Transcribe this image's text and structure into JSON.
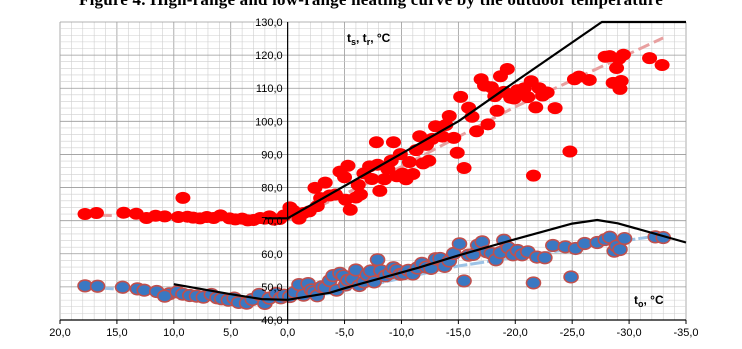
{
  "caption_fragment": "Figure 4. High-range and low-range heating curve by the outdoor temperature",
  "chart_data": {
    "type": "scatter",
    "ylabel": {
      "main": "t",
      "parts": [
        [
          "s",
          true
        ],
        [
          ", t",
          false
        ],
        [
          "r",
          true
        ],
        [
          ", °C",
          false
        ]
      ]
    },
    "xlabel": {
      "main": "t",
      "parts": [
        [
          "o",
          true
        ],
        [
          ", °C",
          false
        ]
      ]
    },
    "xlim": [
      20,
      -35
    ],
    "ylim": [
      40,
      130
    ],
    "x_ticks": [
      "20,0",
      "15,0",
      "10,0",
      "5,0",
      "0,0",
      "-5,0",
      "-10,0",
      "-15,0",
      "-20,0",
      "-25,0",
      "-30,0",
      "-35,0"
    ],
    "x_tick_values": [
      20,
      15,
      10,
      5,
      0,
      -5,
      -10,
      -15,
      -20,
      -25,
      -30,
      -35
    ],
    "y_ticks": [
      "40,0",
      "50,0",
      "60,0",
      "70,0",
      "80,0",
      "90,0",
      "100,0",
      "110,0",
      "120,0",
      "130,0"
    ],
    "y_tick_values": [
      40,
      50,
      60,
      70,
      80,
      90,
      100,
      110,
      120,
      130
    ],
    "grid": true,
    "colors": {
      "supply_points": "#ff0000",
      "return_points": "#3a78c2",
      "return_edge": "#c0504d",
      "curve": "#000000",
      "supply_trend": "#e8a0a0",
      "return_trend": "#9dc3e6"
    },
    "series": [
      {
        "kind": "points",
        "style": "supply",
        "points": [
          [
            17.8,
            72
          ],
          [
            16.8,
            72.3
          ],
          [
            14.4,
            72.4
          ],
          [
            13.3,
            72.1
          ],
          [
            12.4,
            70.8
          ],
          [
            11.6,
            71.5
          ],
          [
            10.8,
            71.3
          ],
          [
            9.6,
            71.1
          ],
          [
            9.2,
            76.9
          ],
          [
            8.8,
            71.2
          ],
          [
            8.3,
            70.9
          ],
          [
            7.7,
            70.7
          ],
          [
            7.1,
            71.1
          ],
          [
            6.5,
            70.8
          ],
          [
            5.9,
            71.6
          ],
          [
            5.1,
            70.7
          ],
          [
            4.6,
            70.4
          ],
          [
            4.0,
            70.6
          ],
          [
            3.5,
            70.1
          ],
          [
            3.0,
            70.2
          ],
          [
            2.4,
            70.8
          ],
          [
            2.0,
            70.6
          ],
          [
            1.6,
            71.3
          ],
          [
            1.2,
            70.3
          ],
          [
            0.7,
            70.5
          ],
          [
            0.3,
            71.6
          ],
          [
            -0.2,
            74.0
          ],
          [
            -0.5,
            73.0
          ],
          [
            -1.0,
            70.6
          ],
          [
            -1.4,
            72.3
          ],
          [
            -1.9,
            72.8
          ],
          [
            -2.4,
            79.9
          ],
          [
            -2.6,
            74.4
          ],
          [
            -2.9,
            76.8
          ],
          [
            -3.3,
            81.5
          ],
          [
            -3.7,
            77.6
          ],
          [
            -4.2,
            77.9
          ],
          [
            -4.6,
            84.8
          ],
          [
            -5.0,
            83.1
          ],
          [
            -5.1,
            76.3
          ],
          [
            -5.3,
            86.6
          ],
          [
            -5.5,
            73.3
          ],
          [
            -6.0,
            77.0
          ],
          [
            -6.2,
            80.8
          ],
          [
            -6.4,
            77.9
          ],
          [
            -6.7,
            84.3
          ],
          [
            -7.2,
            86.4
          ],
          [
            -7.4,
            82.6
          ],
          [
            -7.8,
            93.7
          ],
          [
            -7.9,
            86.9
          ],
          [
            -8.1,
            79.0
          ],
          [
            -8.5,
            82.5
          ],
          [
            -8.8,
            85.6
          ],
          [
            -9.1,
            88.1
          ],
          [
            -9.3,
            93.7
          ],
          [
            -9.6,
            83.4
          ],
          [
            -9.9,
            90.1
          ],
          [
            -10.1,
            84.2
          ],
          [
            -10.4,
            82.5
          ],
          [
            -10.7,
            87.7
          ],
          [
            -11.0,
            84.1
          ],
          [
            -11.3,
            91.3
          ],
          [
            -11.6,
            95.5
          ],
          [
            -11.9,
            87.3
          ],
          [
            -12.2,
            92.9
          ],
          [
            -12.4,
            88.1
          ],
          [
            -12.7,
            94.7
          ],
          [
            -13.0,
            98.5
          ],
          [
            -13.6,
            95.4
          ],
          [
            -13.9,
            98.9
          ],
          [
            -14.2,
            101.6
          ],
          [
            -14.6,
            95.0
          ],
          [
            -14.9,
            90.5
          ],
          [
            -15.2,
            107.4
          ],
          [
            -15.5,
            85.9
          ],
          [
            -15.9,
            104.1
          ],
          [
            -16.2,
            101.4
          ],
          [
            -16.6,
            97.0
          ],
          [
            -17.0,
            112.7
          ],
          [
            -17.3,
            110.8
          ],
          [
            -17.6,
            99.1
          ],
          [
            -17.9,
            110.3
          ],
          [
            -18.2,
            107.6
          ],
          [
            -18.4,
            103.2
          ],
          [
            -18.7,
            113.6
          ],
          [
            -19.0,
            108.9
          ],
          [
            -19.3,
            115.8
          ],
          [
            -19.6,
            107.1
          ],
          [
            -19.9,
            106.9
          ],
          [
            -20.2,
            109.4
          ],
          [
            -20.5,
            108.7
          ],
          [
            -20.8,
            110.0
          ],
          [
            -21.1,
            107.3
          ],
          [
            -21.4,
            112.1
          ],
          [
            -21.6,
            83.6
          ],
          [
            -21.8,
            104.2
          ],
          [
            -22.1,
            110.0
          ],
          [
            -22.4,
            107.8
          ],
          [
            -22.8,
            108.7
          ],
          [
            -23.5,
            104.0
          ],
          [
            -24.8,
            90.9
          ],
          [
            -25.2,
            112.7
          ],
          [
            -25.6,
            113.5
          ],
          [
            -26.5,
            112.5
          ],
          [
            -27.9,
            119.5
          ],
          [
            -28.3,
            119.7
          ],
          [
            -28.6,
            111.6
          ],
          [
            -28.9,
            116.1
          ],
          [
            -29.1,
            118.9
          ],
          [
            -29.2,
            109.8
          ],
          [
            -29.3,
            112.2
          ],
          [
            -29.5,
            120.1
          ],
          [
            -31.8,
            119.1
          ],
          [
            -32.9,
            117.0
          ]
        ]
      },
      {
        "kind": "points",
        "style": "return",
        "points": [
          [
            17.8,
            50.3
          ],
          [
            16.7,
            50.2
          ],
          [
            14.5,
            49.9
          ],
          [
            13.2,
            49.4
          ],
          [
            12.6,
            49.0
          ],
          [
            11.5,
            48.6
          ],
          [
            10.4,
            47.9
          ],
          [
            10.8,
            47.2
          ],
          [
            9.7,
            48.5
          ],
          [
            9.2,
            47.8
          ],
          [
            8.6,
            47.4
          ],
          [
            8.0,
            47.2
          ],
          [
            7.4,
            46.9
          ],
          [
            6.7,
            47.7
          ],
          [
            6.2,
            46.7
          ],
          [
            5.8,
            46.4
          ],
          [
            5.2,
            46.0
          ],
          [
            4.7,
            46.6
          ],
          [
            4.3,
            45.3
          ],
          [
            3.6,
            45.1
          ],
          [
            3.1,
            46.2
          ],
          [
            2.5,
            47.7
          ],
          [
            2.0,
            45.0
          ],
          [
            1.6,
            46.6
          ],
          [
            1.0,
            48.0
          ],
          [
            0.6,
            46.7
          ],
          [
            0.3,
            47.5
          ],
          [
            -0.2,
            47.1
          ],
          [
            -0.6,
            48.4
          ],
          [
            -1.0,
            50.7
          ],
          [
            -1.4,
            47.5
          ],
          [
            -1.8,
            51.0
          ],
          [
            -2.1,
            49.1
          ],
          [
            -2.3,
            48.4
          ],
          [
            -2.6,
            47.3
          ],
          [
            -3.0,
            50.0
          ],
          [
            -3.3,
            49.8
          ],
          [
            -3.7,
            51.9
          ],
          [
            -4.0,
            53.4
          ],
          [
            -4.3,
            49.0
          ],
          [
            -4.6,
            54.1
          ],
          [
            -4.9,
            53.3
          ],
          [
            -5.1,
            50.6
          ],
          [
            -5.3,
            52.0
          ],
          [
            -5.7,
            52.3
          ],
          [
            -6.0,
            55.1
          ],
          [
            -6.3,
            50.4
          ],
          [
            -6.7,
            51.5
          ],
          [
            -7.0,
            53.7
          ],
          [
            -7.3,
            54.8
          ],
          [
            -7.6,
            51.5
          ],
          [
            -7.9,
            58.2
          ],
          [
            -8.2,
            54.9
          ],
          [
            -8.6,
            53.3
          ],
          [
            -9.0,
            54.2
          ],
          [
            -9.3,
            55.8
          ],
          [
            -9.6,
            55.1
          ],
          [
            -9.9,
            53.8
          ],
          [
            -10.2,
            54.0
          ],
          [
            -10.6,
            55.0
          ],
          [
            -11.0,
            53.9
          ],
          [
            -11.4,
            55.7
          ],
          [
            -11.8,
            57.1
          ],
          [
            -12.2,
            56.0
          ],
          [
            -12.6,
            55.6
          ],
          [
            -13.0,
            58.5
          ],
          [
            -13.4,
            58.6
          ],
          [
            -13.8,
            56.2
          ],
          [
            -14.2,
            57.8
          ],
          [
            -14.6,
            60.1
          ],
          [
            -15.1,
            63.0
          ],
          [
            -15.5,
            51.8
          ],
          [
            -15.9,
            59.6
          ],
          [
            -16.3,
            59.8
          ],
          [
            -16.7,
            62.6
          ],
          [
            -17.1,
            63.6
          ],
          [
            -17.5,
            60.6
          ],
          [
            -17.9,
            60.1
          ],
          [
            -18.3,
            58.2
          ],
          [
            -18.7,
            60.4
          ],
          [
            -19.0,
            64.1
          ],
          [
            -19.4,
            61.8
          ],
          [
            -19.8,
            59.7
          ],
          [
            -20.2,
            61.0
          ],
          [
            -20.6,
            59.7
          ],
          [
            -21.1,
            60.6
          ],
          [
            -21.6,
            51.2
          ],
          [
            -21.9,
            59.0
          ],
          [
            -22.6,
            58.8
          ],
          [
            -23.3,
            62.5
          ],
          [
            -24.4,
            62.1
          ],
          [
            -24.9,
            53.0
          ],
          [
            -25.3,
            61.6
          ],
          [
            -26.1,
            63.1
          ],
          [
            -27.2,
            63.4
          ],
          [
            -27.9,
            64.3
          ],
          [
            -28.3,
            65.0
          ],
          [
            -28.7,
            60.8
          ],
          [
            -28.9,
            62.3
          ],
          [
            -29.2,
            61.3
          ],
          [
            -29.6,
            64.6
          ],
          [
            -32.3,
            65.1
          ],
          [
            -33.0,
            64.9
          ]
        ]
      },
      {
        "kind": "line",
        "style": "supply_curve",
        "points": [
          [
            2,
            70.7
          ],
          [
            0,
            70.7
          ],
          [
            -15,
            100
          ],
          [
            -20,
            112
          ],
          [
            -27.6,
            130
          ],
          [
            -35,
            130
          ]
        ]
      },
      {
        "kind": "line",
        "style": "return_curve",
        "points": [
          [
            10,
            50.8
          ],
          [
            5.2,
            47.9
          ],
          [
            2.3,
            46.3
          ],
          [
            0,
            46.1
          ],
          [
            -3.7,
            48.2
          ],
          [
            -5.2,
            49.8
          ],
          [
            -11.5,
            55.8
          ],
          [
            -15,
            59.5
          ],
          [
            -20,
            64.4
          ],
          [
            -25,
            69.1
          ],
          [
            -27.2,
            70.2
          ],
          [
            -29,
            69.2
          ],
          [
            -35,
            63.4
          ]
        ]
      },
      {
        "kind": "trend",
        "style": "supply_trend",
        "points": [
          [
            18,
            71.7
          ],
          [
            -0.5,
            70.6
          ],
          [
            -10,
            86.3
          ],
          [
            -20,
            104.4
          ],
          [
            -33,
            125.2
          ]
        ]
      },
      {
        "kind": "trend",
        "style": "return_trend",
        "points": [
          [
            18,
            50.0
          ],
          [
            3,
            46.6
          ],
          [
            -3.8,
            48.0
          ],
          [
            -15,
            56.3
          ],
          [
            -25,
            61.5
          ],
          [
            -33,
            65.7
          ]
        ]
      }
    ]
  }
}
